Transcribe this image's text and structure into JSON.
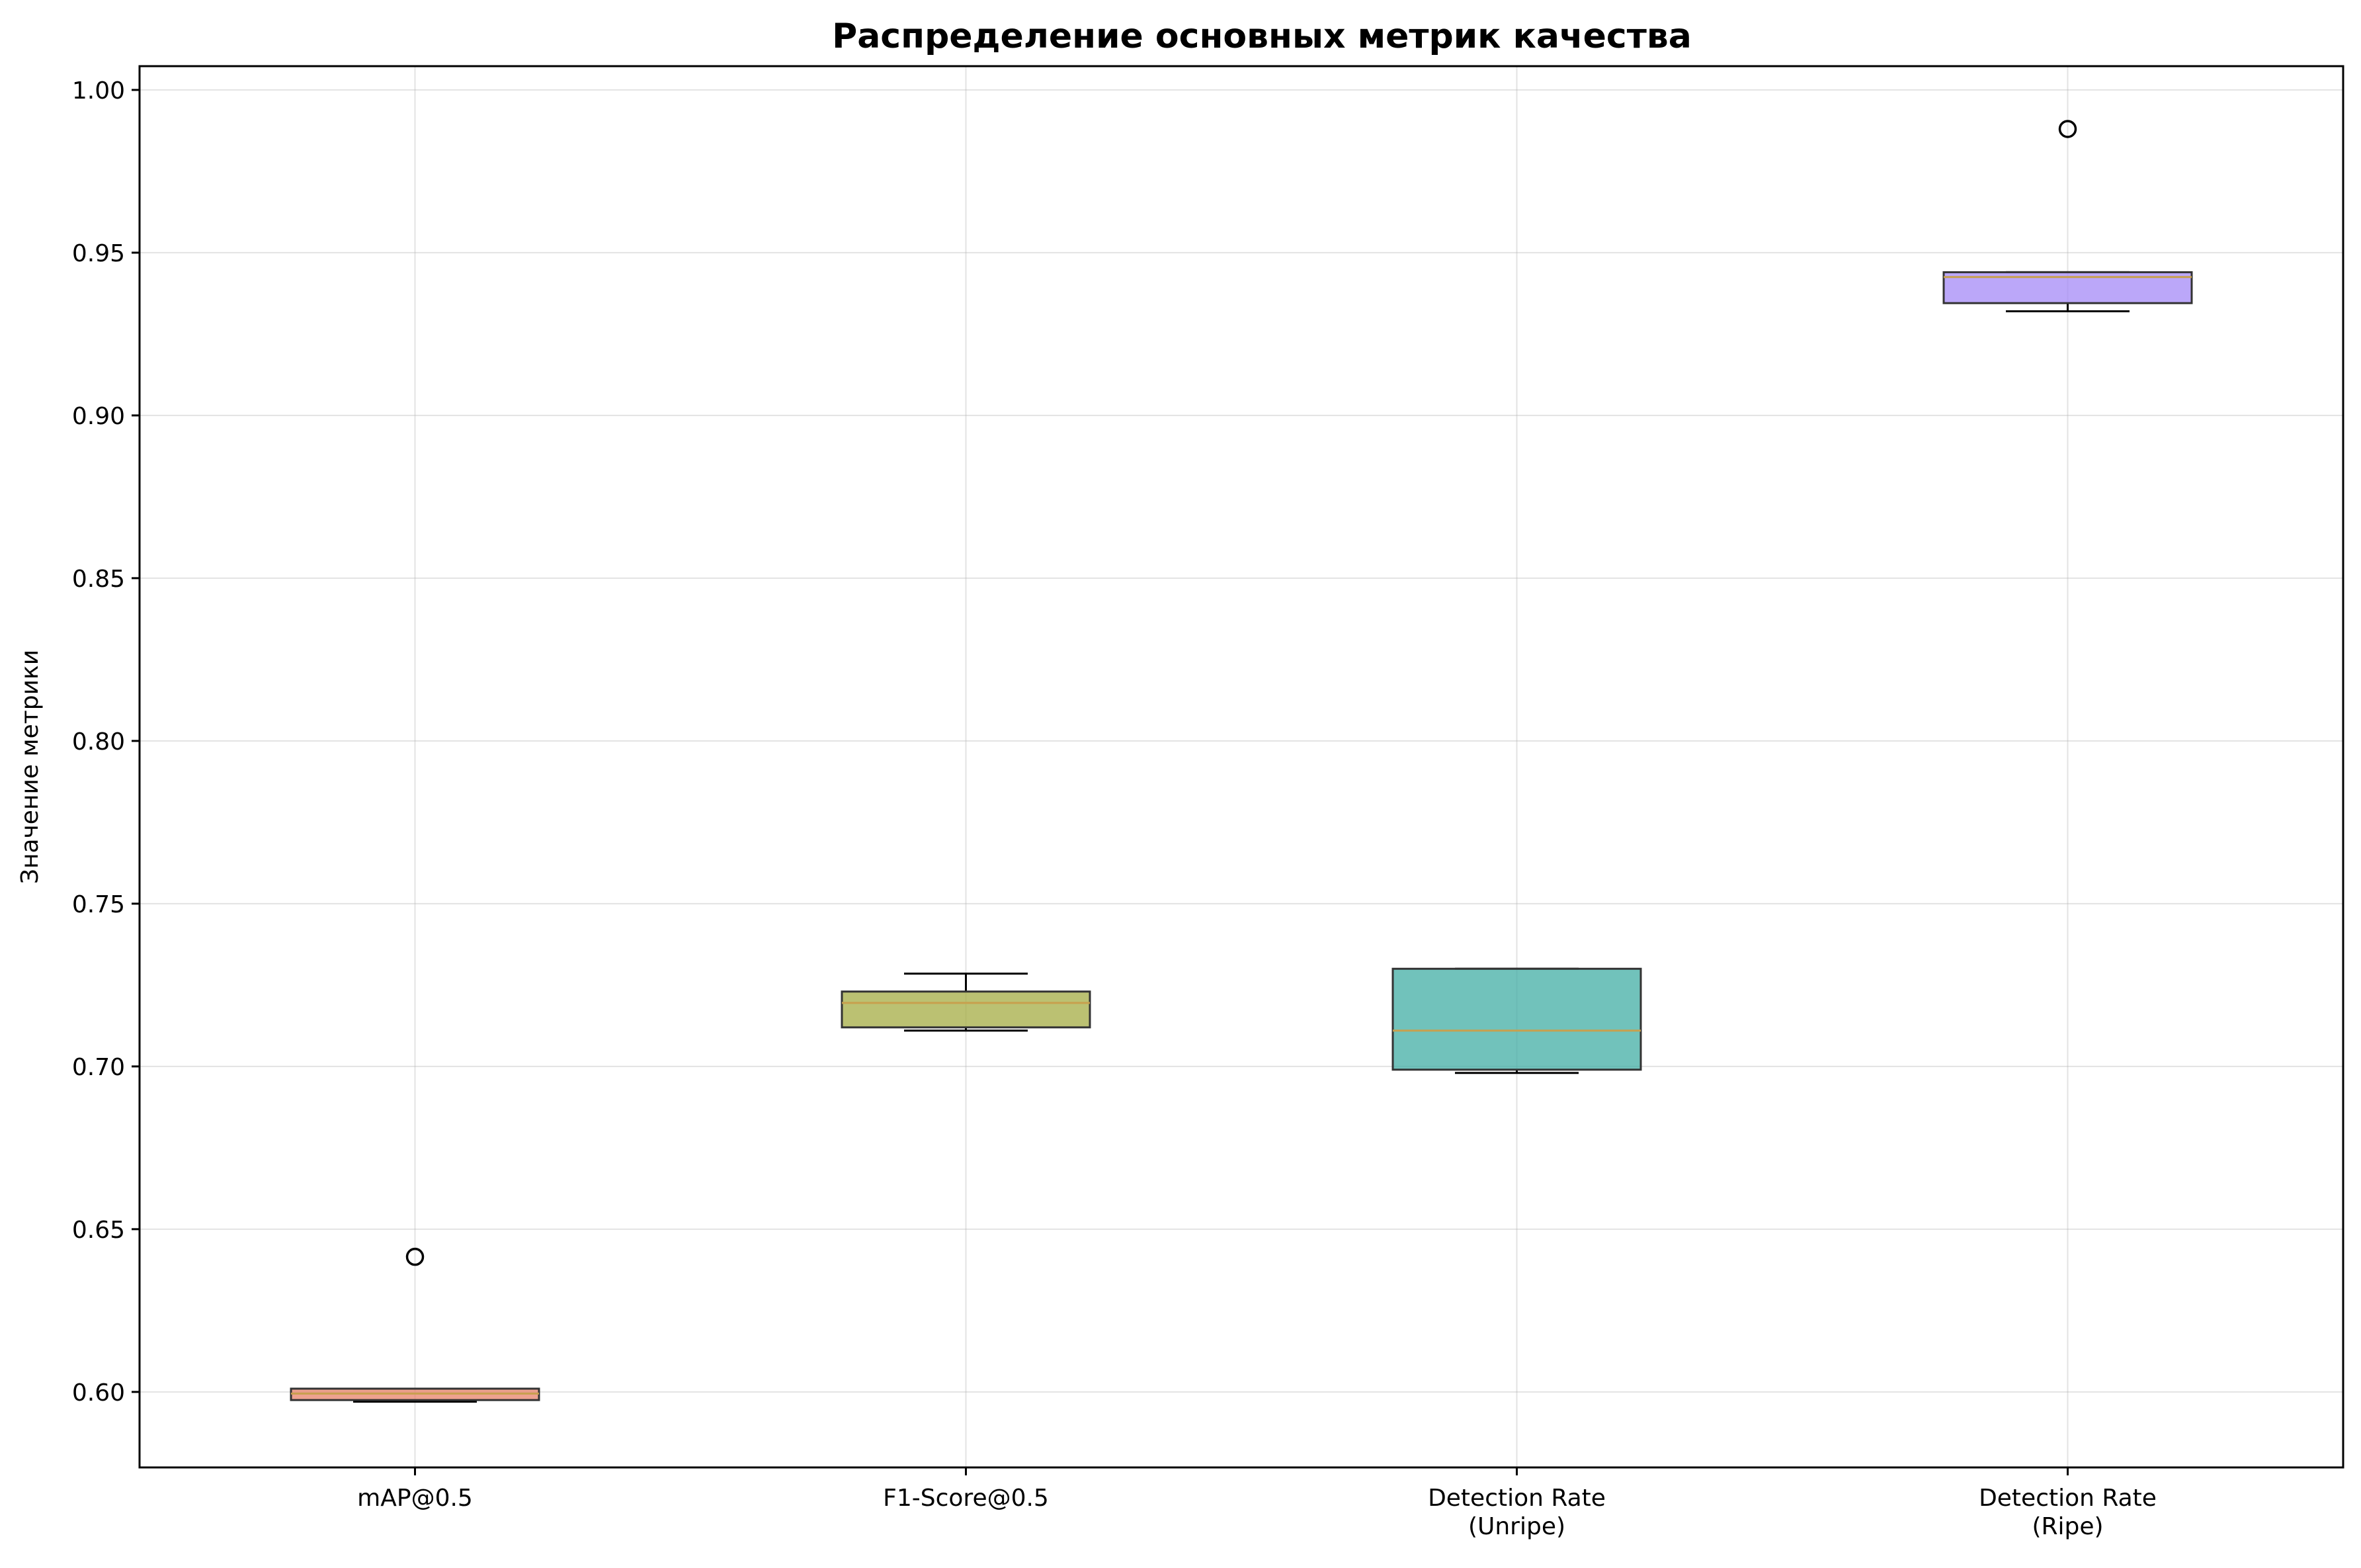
{
  "chart_data": {
    "type": "box",
    "title": "Распределение основных метрик качества",
    "xlabel": "",
    "ylabel": "Значение метрики",
    "ylim": [
      0.5768,
      1.0073
    ],
    "yticks": [
      0.6,
      0.65,
      0.7,
      0.75,
      0.8,
      0.85,
      0.9,
      0.95,
      1.0
    ],
    "ytick_labels": [
      "0.60",
      "0.65",
      "0.70",
      "0.75",
      "0.80",
      "0.85",
      "0.90",
      "0.95",
      "1.00"
    ],
    "grid": true,
    "categories": [
      [
        "mAP@0.5"
      ],
      [
        "F1-Score@0.5"
      ],
      [
        "Detection Rate",
        "(Unripe)"
      ],
      [
        "Detection Rate",
        "(Ripe)"
      ]
    ],
    "boxes": [
      {
        "name": "mAP@0.5",
        "whisker_low": 0.597,
        "q1": 0.5975,
        "median": 0.5995,
        "q3": 0.601,
        "whisker_high": 0.601,
        "outliers": [
          0.6415
        ],
        "color": "#e8836a"
      },
      {
        "name": "F1-Score@0.5",
        "whisker_low": 0.711,
        "q1": 0.712,
        "median": 0.7195,
        "q3": 0.723,
        "whisker_high": 0.7285,
        "outliers": [],
        "color": "#a4ac43"
      },
      {
        "name": "Detection Rate (Unripe)",
        "whisker_low": 0.698,
        "q1": 0.699,
        "median": 0.711,
        "q3": 0.73,
        "whisker_high": 0.73,
        "outliers": [],
        "color": "#42ada4"
      },
      {
        "name": "Detection Rate (Ripe)",
        "whisker_low": 0.932,
        "q1": 0.9345,
        "median": 0.9425,
        "q3": 0.944,
        "whisker_high": 0.944,
        "outliers": [
          0.988
        ],
        "color": "#a48af7"
      }
    ],
    "median_color": "#c8a04e"
  }
}
